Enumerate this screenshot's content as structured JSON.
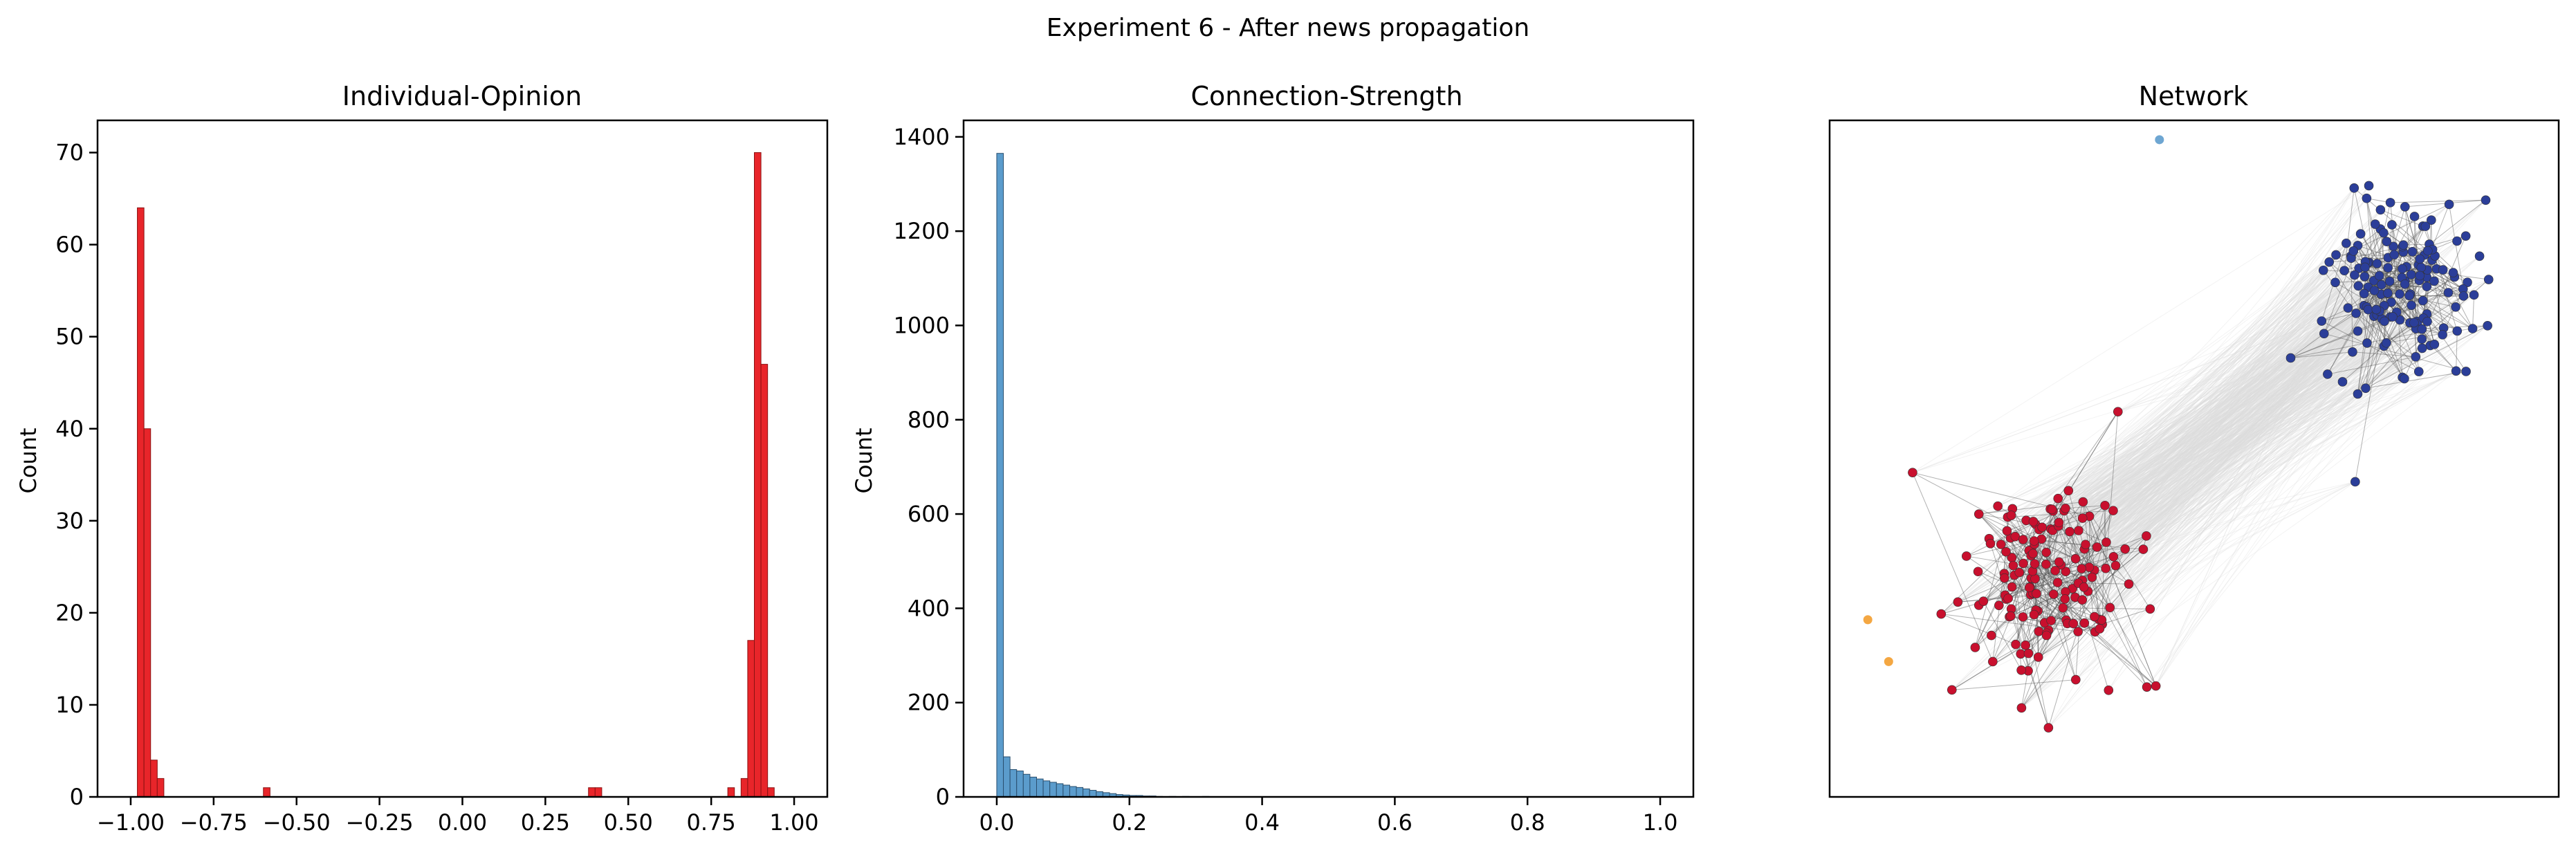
{
  "figure": {
    "suptitle": "Experiment 6 - After news propagation"
  },
  "colors": {
    "opinion_bar": "#e8252a",
    "opinion_edge": "#8a1212",
    "strength_bar": "#5b9ccc",
    "strength_edge": "#2a4f6e",
    "node_red": "#c8102e",
    "node_blue": "#2b3e99",
    "node_light_blue": "#6ea6d2",
    "node_orange": "#f4a742",
    "edge_dark": "#555555",
    "edge_light": "#dcdcdc"
  },
  "chart_data": [
    {
      "type": "bar",
      "subtype": "histogram",
      "title": "Individual-Opinion",
      "xlabel": "",
      "ylabel": "Count",
      "xlim": [
        -1.1,
        1.1
      ],
      "ylim": [
        0,
        73.5
      ],
      "xticks": [
        -1.0,
        -0.75,
        -0.5,
        -0.25,
        0.0,
        0.25,
        0.5,
        0.75,
        1.0
      ],
      "xtick_labels": [
        "−1.00",
        "−0.75",
        "−0.50",
        "−0.25",
        "0.00",
        "0.25",
        "0.50",
        "0.75",
        "1.00"
      ],
      "yticks": [
        0,
        10,
        20,
        30,
        40,
        50,
        60,
        70
      ],
      "ytick_labels": [
        "0",
        "10",
        "20",
        "30",
        "40",
        "50",
        "60",
        "70"
      ],
      "bin_width": 0.02,
      "bins": [
        {
          "x": -0.97,
          "count": 64
        },
        {
          "x": -0.95,
          "count": 40
        },
        {
          "x": -0.93,
          "count": 4
        },
        {
          "x": -0.91,
          "count": 2
        },
        {
          "x": -0.59,
          "count": 1
        },
        {
          "x": 0.39,
          "count": 1
        },
        {
          "x": 0.41,
          "count": 1
        },
        {
          "x": 0.81,
          "count": 1
        },
        {
          "x": 0.85,
          "count": 2
        },
        {
          "x": 0.87,
          "count": 17
        },
        {
          "x": 0.89,
          "count": 70
        },
        {
          "x": 0.91,
          "count": 47
        },
        {
          "x": 0.93,
          "count": 1
        }
      ]
    },
    {
      "type": "bar",
      "subtype": "histogram",
      "title": "Connection-Strength",
      "xlabel": "",
      "ylabel": "Count",
      "xlim": [
        -0.05,
        1.05
      ],
      "ylim": [
        0,
        1435
      ],
      "xticks": [
        0.0,
        0.2,
        0.4,
        0.6,
        0.8,
        1.0
      ],
      "xtick_labels": [
        "0.0",
        "0.2",
        "0.4",
        "0.6",
        "0.8",
        "1.0"
      ],
      "yticks": [
        0,
        200,
        400,
        600,
        800,
        1000,
        1200,
        1400
      ],
      "ytick_labels": [
        "0",
        "200",
        "400",
        "600",
        "800",
        "1000",
        "1200",
        "1400"
      ],
      "bin_width": 0.01,
      "bins": [
        {
          "x": 0.005,
          "count": 1365
        },
        {
          "x": 0.015,
          "count": 85
        },
        {
          "x": 0.025,
          "count": 58
        },
        {
          "x": 0.035,
          "count": 55
        },
        {
          "x": 0.045,
          "count": 48
        },
        {
          "x": 0.055,
          "count": 42
        },
        {
          "x": 0.065,
          "count": 38
        },
        {
          "x": 0.075,
          "count": 34
        },
        {
          "x": 0.085,
          "count": 31
        },
        {
          "x": 0.095,
          "count": 28
        },
        {
          "x": 0.105,
          "count": 25
        },
        {
          "x": 0.115,
          "count": 22
        },
        {
          "x": 0.125,
          "count": 20
        },
        {
          "x": 0.135,
          "count": 17
        },
        {
          "x": 0.145,
          "count": 14
        },
        {
          "x": 0.155,
          "count": 11
        },
        {
          "x": 0.165,
          "count": 9
        },
        {
          "x": 0.175,
          "count": 7
        },
        {
          "x": 0.185,
          "count": 5
        },
        {
          "x": 0.195,
          "count": 4
        },
        {
          "x": 0.205,
          "count": 3
        },
        {
          "x": 0.215,
          "count": 3
        },
        {
          "x": 0.225,
          "count": 2
        },
        {
          "x": 0.235,
          "count": 2
        },
        {
          "x": 0.245,
          "count": 1
        },
        {
          "x": 0.265,
          "count": 1
        },
        {
          "x": 0.285,
          "count": 1
        },
        {
          "x": 0.315,
          "count": 1
        }
      ]
    },
    {
      "type": "scatter",
      "subtype": "network",
      "title": "Network",
      "xlabel": "",
      "ylabel": "",
      "axes_ticks": false,
      "clusters": [
        {
          "name": "red",
          "center": [
            -0.42,
            -0.38
          ],
          "spread": [
            0.12,
            0.16
          ],
          "count": 150
        },
        {
          "name": "blue",
          "center": [
            0.6,
            0.54
          ],
          "spread": [
            0.11,
            0.13
          ],
          "count": 150
        }
      ],
      "isolated_nodes": [
        {
          "x": -0.1,
          "y": 0.99,
          "color": "light_blue"
        },
        {
          "x": -0.94,
          "y": -0.5,
          "color": "orange"
        },
        {
          "x": -0.88,
          "y": -0.63,
          "color": "orange"
        }
      ]
    }
  ]
}
